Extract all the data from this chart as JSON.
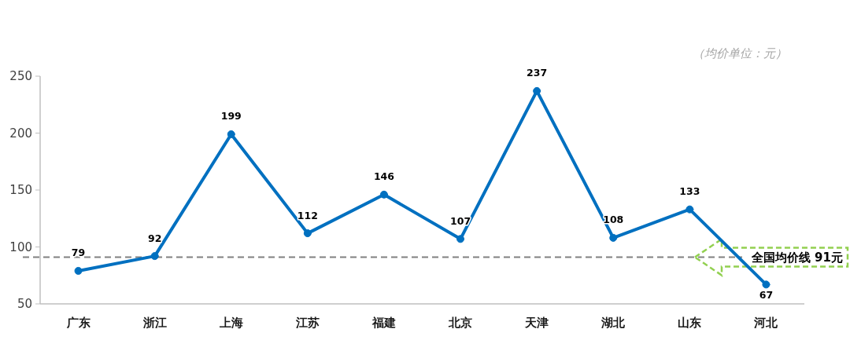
{
  "chart_data": {
    "type": "line",
    "categories": [
      "广东",
      "浙江",
      "上海",
      "江苏",
      "福建",
      "北京",
      "天津",
      "湖北",
      "山东",
      "河北"
    ],
    "values": [
      79,
      92,
      199,
      112,
      146,
      107,
      237,
      108,
      133,
      67
    ],
    "color": "#0070c0",
    "ylim": [
      50,
      250
    ],
    "yticks": [
      50,
      100,
      150,
      200,
      250
    ],
    "ref_lines": [
      {
        "axis": "y",
        "value": 91,
        "label": "全国均价线 91元",
        "color": "#808080",
        "line_style": "dashed"
      }
    ],
    "annotations": [
      "（均价单位：元）"
    ],
    "data_labels": true,
    "marker": "circle",
    "line_style": "solid"
  }
}
